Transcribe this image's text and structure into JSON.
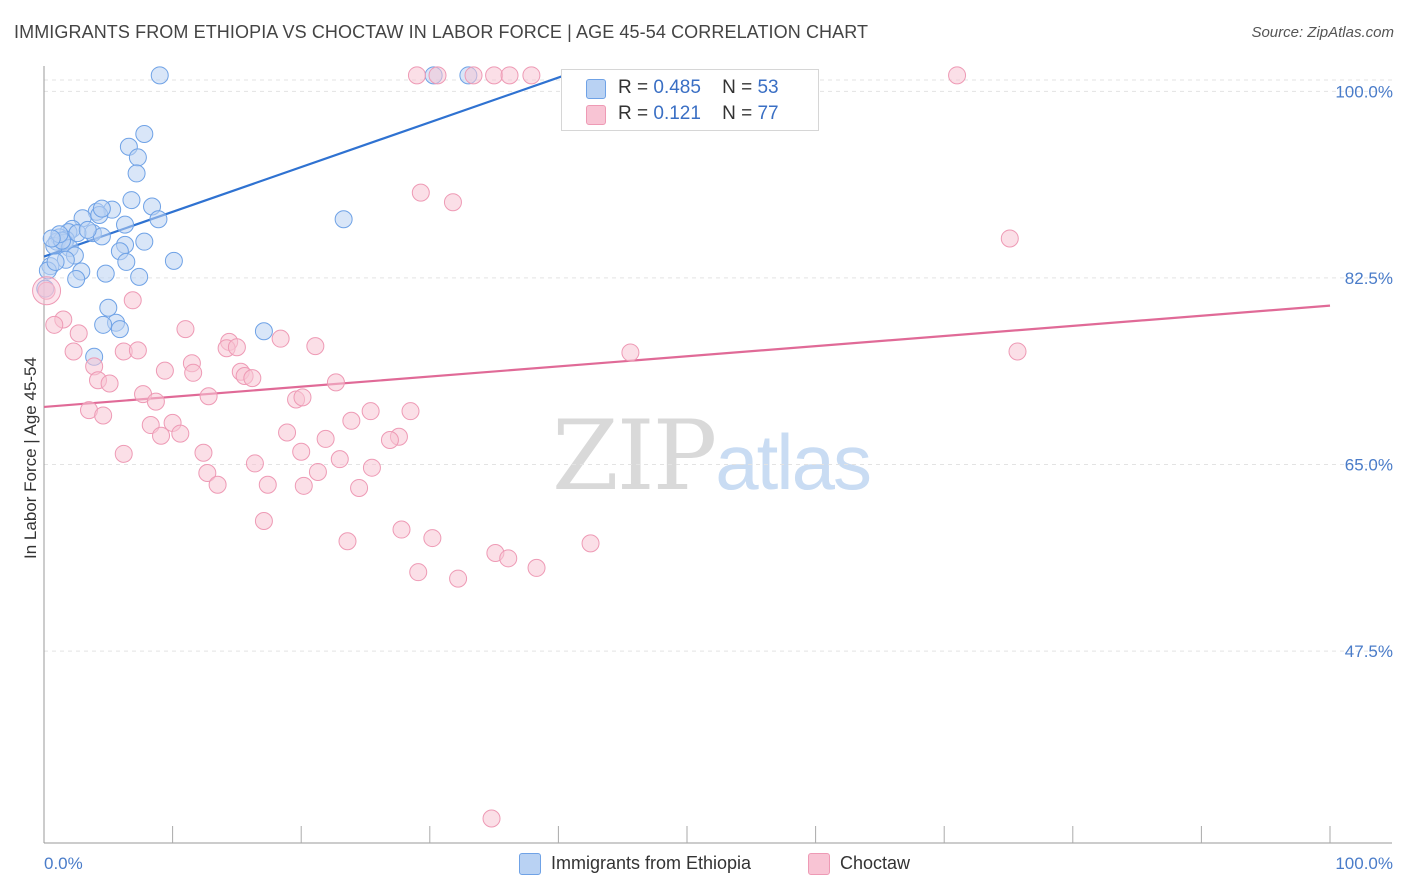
{
  "header": {
    "title": "IMMIGRANTS FROM ETHIOPIA VS CHOCTAW IN LABOR FORCE | AGE 45-54 CORRELATION CHART",
    "source": "Source: ZipAtlas.com"
  },
  "watermark": {
    "zip": "ZIP",
    "atlas": "atlas"
  },
  "legend_top": [
    {
      "swatch_color": "#b9d2f3",
      "r_label": "R =",
      "r_value": "0.485",
      "n_label": "N =",
      "n_value": "53"
    },
    {
      "swatch_color": "#f8c4d4",
      "r_label": "R =",
      "r_value": "0.121",
      "n_label": "N =",
      "n_value": "77"
    }
  ],
  "legend_bottom": [
    {
      "label": "Immigrants from Ethiopia",
      "swatch_color": "#b9d2f3"
    },
    {
      "label": "Choctaw",
      "swatch_color": "#f8c4d4"
    }
  ],
  "chart_data": {
    "type": "scatter",
    "title": "IMMIGRANTS FROM ETHIOPIA VS CHOCTAW IN LABOR FORCE | AGE 45-54 CORRELATION CHART",
    "xlabel": "",
    "ylabel": "In Labor Force | Age 45-54",
    "xlim": [
      0,
      100
    ],
    "ylim": [
      29.5,
      102
    ],
    "x_tick_labels": [
      "0.0%",
      "100.0%"
    ],
    "y_ticks": [
      100.0,
      82.5,
      65.0,
      47.5
    ],
    "y_tick_labels": [
      "100.0%",
      "82.5%",
      "65.0%",
      "47.5%"
    ],
    "grid": true,
    "series": [
      {
        "name": "Immigrants from Ethiopia",
        "color": "#6fa2e6",
        "fill": "#b9d2f3",
        "line_color": "#2f72d1",
        "trend": {
          "x0": 0,
          "y0": 84.5,
          "x1": 40.5,
          "y1": 101.5
        },
        "points": [
          [
            9.0,
            101.5
          ],
          [
            30.3,
            101.5
          ],
          [
            33.0,
            101.5
          ],
          [
            7.8,
            96.0
          ],
          [
            6.6,
            94.8
          ],
          [
            7.3,
            93.8
          ],
          [
            7.2,
            92.3
          ],
          [
            6.8,
            89.8
          ],
          [
            8.4,
            89.2
          ],
          [
            5.3,
            88.9
          ],
          [
            4.1,
            88.7
          ],
          [
            4.3,
            88.4
          ],
          [
            3.0,
            88.1
          ],
          [
            8.9,
            88.0
          ],
          [
            6.3,
            87.5
          ],
          [
            2.2,
            87.1
          ],
          [
            1.9,
            86.8
          ],
          [
            3.8,
            86.7
          ],
          [
            4.5,
            86.4
          ],
          [
            1.2,
            86.3
          ],
          [
            1.7,
            86.1
          ],
          [
            1.0,
            85.9
          ],
          [
            1.6,
            85.8
          ],
          [
            7.8,
            85.9
          ],
          [
            6.3,
            85.6
          ],
          [
            0.8,
            85.5
          ],
          [
            2.0,
            85.3
          ],
          [
            5.9,
            85.0
          ],
          [
            2.4,
            84.6
          ],
          [
            1.7,
            84.2
          ],
          [
            10.1,
            84.1
          ],
          [
            6.4,
            84.0
          ],
          [
            0.5,
            83.6
          ],
          [
            0.3,
            83.2
          ],
          [
            2.9,
            83.1
          ],
          [
            4.8,
            82.9
          ],
          [
            7.4,
            82.6
          ],
          [
            2.5,
            82.4
          ],
          [
            0.1,
            81.5
          ],
          [
            5.0,
            79.7
          ],
          [
            5.6,
            78.3
          ],
          [
            4.6,
            78.1
          ],
          [
            5.9,
            77.7
          ],
          [
            17.1,
            77.5
          ],
          [
            3.9,
            75.1
          ],
          [
            23.3,
            88.0
          ],
          [
            4.5,
            89.0
          ],
          [
            1.4,
            86.0
          ],
          [
            0.9,
            84.0
          ],
          [
            2.6,
            86.7
          ],
          [
            3.4,
            87.0
          ],
          [
            1.2,
            86.6
          ],
          [
            0.6,
            86.2
          ]
        ]
      },
      {
        "name": "Choctaw",
        "color": "#ee9ab5",
        "fill": "#f8c4d4",
        "line_color": "#e06a97",
        "trend": {
          "x0": 0,
          "y0": 70.4,
          "x1": 100,
          "y1": 79.9
        },
        "points": [
          [
            29.0,
            101.5
          ],
          [
            30.6,
            101.5
          ],
          [
            33.4,
            101.5
          ],
          [
            35.0,
            101.5
          ],
          [
            36.2,
            101.5
          ],
          [
            37.9,
            101.5
          ],
          [
            71.0,
            101.5
          ],
          [
            29.3,
            90.5
          ],
          [
            31.8,
            89.6
          ],
          [
            75.1,
            86.2
          ],
          [
            0.2,
            81.3
          ],
          [
            6.9,
            80.4
          ],
          [
            1.5,
            78.6
          ],
          [
            0.8,
            78.1
          ],
          [
            11.0,
            77.7
          ],
          [
            2.7,
            77.3
          ],
          [
            18.4,
            76.8
          ],
          [
            14.4,
            76.5
          ],
          [
            21.1,
            76.1
          ],
          [
            14.2,
            75.9
          ],
          [
            6.2,
            75.6
          ],
          [
            7.3,
            75.7
          ],
          [
            2.3,
            75.6
          ],
          [
            75.7,
            75.6
          ],
          [
            45.6,
            75.5
          ],
          [
            11.5,
            74.5
          ],
          [
            3.9,
            74.2
          ],
          [
            9.4,
            73.8
          ],
          [
            15.3,
            73.7
          ],
          [
            15.6,
            73.3
          ],
          [
            16.2,
            73.1
          ],
          [
            4.2,
            72.9
          ],
          [
            5.1,
            72.6
          ],
          [
            22.7,
            72.7
          ],
          [
            7.7,
            71.6
          ],
          [
            12.8,
            71.4
          ],
          [
            19.6,
            71.1
          ],
          [
            20.1,
            71.3
          ],
          [
            8.7,
            70.9
          ],
          [
            3.5,
            70.1
          ],
          [
            4.6,
            69.6
          ],
          [
            28.5,
            70.0
          ],
          [
            25.4,
            70.0
          ],
          [
            23.9,
            69.1
          ],
          [
            10.0,
            68.9
          ],
          [
            8.3,
            68.7
          ],
          [
            18.9,
            68.0
          ],
          [
            9.1,
            67.7
          ],
          [
            10.6,
            67.9
          ],
          [
            27.6,
            67.6
          ],
          [
            26.9,
            67.3
          ],
          [
            21.9,
            67.4
          ],
          [
            6.2,
            66.0
          ],
          [
            12.4,
            66.1
          ],
          [
            20.0,
            66.2
          ],
          [
            23.0,
            65.5
          ],
          [
            16.4,
            65.1
          ],
          [
            25.5,
            64.7
          ],
          [
            12.7,
            64.2
          ],
          [
            21.3,
            64.3
          ],
          [
            13.5,
            63.1
          ],
          [
            17.4,
            63.1
          ],
          [
            20.2,
            63.0
          ],
          [
            24.5,
            62.8
          ],
          [
            17.1,
            59.7
          ],
          [
            27.8,
            58.9
          ],
          [
            30.2,
            58.1
          ],
          [
            23.6,
            57.8
          ],
          [
            42.5,
            57.6
          ],
          [
            35.1,
            56.7
          ],
          [
            36.1,
            56.2
          ],
          [
            38.3,
            55.3
          ],
          [
            29.1,
            54.9
          ],
          [
            32.2,
            54.3
          ],
          [
            34.8,
            31.8
          ],
          [
            15.0,
            76.0
          ],
          [
            11.6,
            73.6
          ]
        ]
      }
    ]
  }
}
